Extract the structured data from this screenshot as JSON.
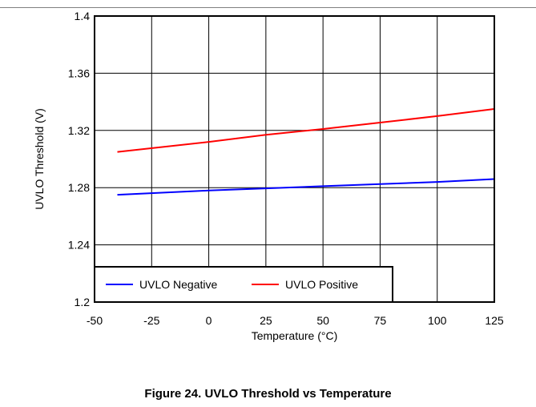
{
  "caption": "Figure 24. UVLO Threshold vs Temperature",
  "chart_data": {
    "type": "line",
    "title": "",
    "xlabel": "Temperature (°C)",
    "ylabel": "UVLO Threshold (V)",
    "xlim": [
      -50,
      125
    ],
    "ylim": [
      1.2,
      1.4
    ],
    "x_ticks": [
      -50,
      -25,
      0,
      25,
      50,
      75,
      100,
      125
    ],
    "x_tick_labels": [
      "-50",
      "-25",
      "0",
      "25",
      "50",
      "75",
      "100",
      "125"
    ],
    "y_ticks": [
      1.2,
      1.24,
      1.28,
      1.32,
      1.36,
      1.4
    ],
    "y_tick_labels": [
      "1.2",
      "1.24",
      "1.28",
      "1.32",
      "1.36",
      "1.4"
    ],
    "grid": true,
    "legend_position": "bottom-left",
    "series": [
      {
        "name": "UVLO Negative",
        "color": "#0000ff",
        "x": [
          -40,
          0,
          25,
          50,
          75,
          100,
          125
        ],
        "y": [
          1.275,
          1.278,
          1.2795,
          1.281,
          1.2825,
          1.284,
          1.286
        ]
      },
      {
        "name": "UVLO Positive",
        "color": "#ff0000",
        "x": [
          -40,
          0,
          25,
          50,
          75,
          100,
          125
        ],
        "y": [
          1.305,
          1.312,
          1.317,
          1.321,
          1.3255,
          1.33,
          1.335
        ]
      }
    ]
  }
}
